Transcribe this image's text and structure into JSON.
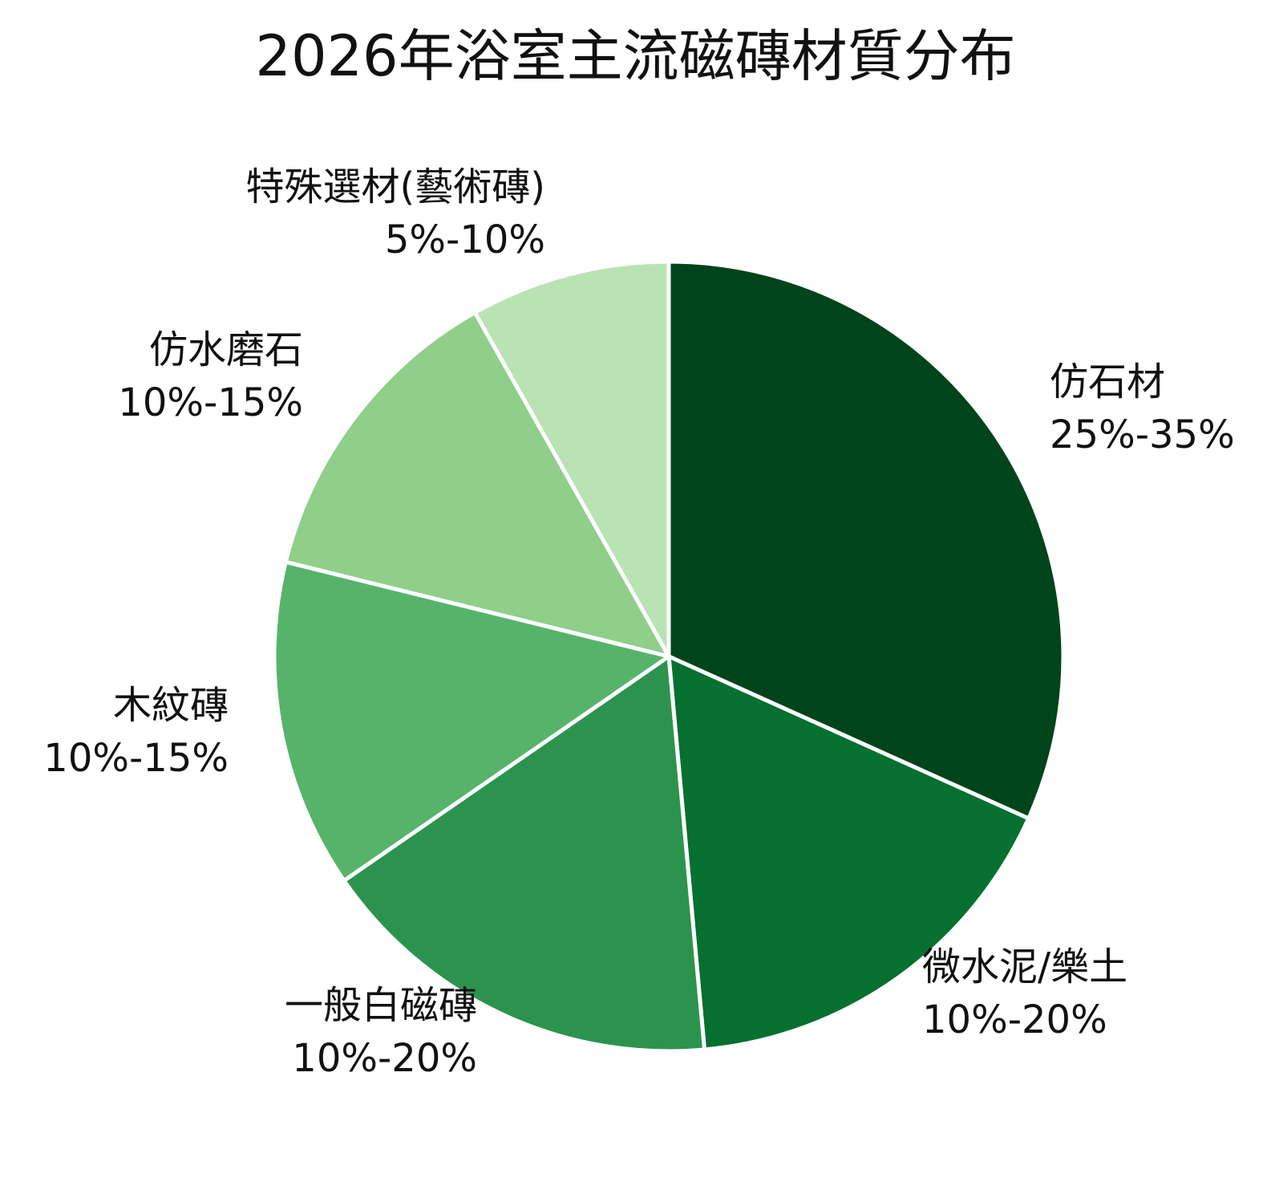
{
  "chart_data": {
    "type": "pie",
    "title": "2026年浴室主流磁磚材質分布",
    "start_angle_deg": 0,
    "direction": "clockwise",
    "slices": [
      {
        "name": "仿石材",
        "range": "25%-35%",
        "value": 33,
        "color": "#00441b"
      },
      {
        "name": "微水泥/樂土",
        "range": "10%-20%",
        "value": 17.5,
        "color": "#067030"
      },
      {
        "name": "一般白磁磚",
        "range": "10%-20%",
        "value": 17.5,
        "color": "#2c934e"
      },
      {
        "name": "木紋磚",
        "range": "10%-15%",
        "value": 14,
        "color": "#56b46a"
      },
      {
        "name": "仿水磨石",
        "range": "10%-15%",
        "value": 13.5,
        "color": "#8fcf8a"
      },
      {
        "name": "特殊選材(藝術磚)",
        "range": "5%-10%",
        "value": 8.5,
        "color": "#b9e3b3"
      }
    ]
  }
}
